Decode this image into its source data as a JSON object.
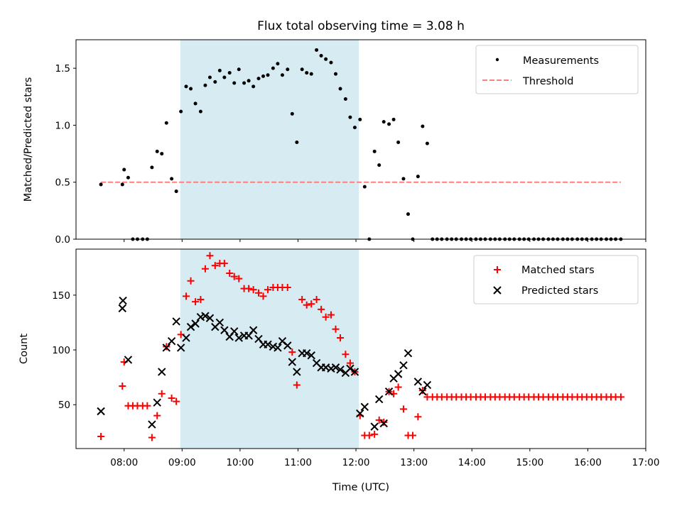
{
  "chart_data": [
    {
      "type": "scatter",
      "title": "Flux total observing time = 3.08 h",
      "xlabel": "",
      "ylabel": "Matched/Predicted stars",
      "xlim": [
        7.17,
        17.0
      ],
      "ylim": [
        0.0,
        1.75
      ],
      "yticks": [
        0.0,
        0.5,
        1.0,
        1.5
      ],
      "ytick_labels": [
        "0.0",
        "0.5",
        "1.0",
        "1.5"
      ],
      "highlight_span": {
        "from": 8.97,
        "to": 12.05,
        "color": "#add8e6"
      },
      "legend": {
        "position": "top-right",
        "entries": [
          "Measurements",
          "Threshold"
        ]
      },
      "series": [
        {
          "name": "Measurements",
          "marker": "dot",
          "color": "#000000",
          "x": [
            7.6,
            7.97,
            8.0,
            8.07,
            8.15,
            8.23,
            8.32,
            8.4,
            8.48,
            8.57,
            8.65,
            8.73,
            8.82,
            8.9,
            8.98,
            9.07,
            9.15,
            9.23,
            9.32,
            9.4,
            9.48,
            9.57,
            9.65,
            9.73,
            9.82,
            9.9,
            9.98,
            10.07,
            10.15,
            10.23,
            10.32,
            10.4,
            10.48,
            10.57,
            10.65,
            10.73,
            10.82,
            10.9,
            10.98,
            11.07,
            11.15,
            11.23,
            11.32,
            11.4,
            11.48,
            11.57,
            11.65,
            11.73,
            11.82,
            11.9,
            11.98,
            12.07,
            12.15,
            12.23,
            12.32,
            12.4,
            12.48,
            12.57,
            12.65,
            12.73,
            12.82,
            12.9,
            12.98,
            13.07,
            13.15,
            13.23,
            13.32,
            13.4,
            13.48,
            13.57,
            13.65,
            13.73,
            13.82,
            13.9,
            13.98,
            14.07,
            14.15,
            14.23,
            14.32,
            14.4,
            14.48,
            14.57,
            14.65,
            14.73,
            14.82,
            14.9,
            14.98,
            15.07,
            15.15,
            15.23,
            15.32,
            15.4,
            15.48,
            15.57,
            15.65,
            15.73,
            15.82,
            15.9,
            15.98,
            16.07,
            16.15,
            16.23,
            16.32,
            16.4,
            16.48,
            16.57
          ],
          "y": [
            0.48,
            0.48,
            0.61,
            0.54,
            0.0,
            0.0,
            0.0,
            0.0,
            0.63,
            0.77,
            0.75,
            1.02,
            0.53,
            0.42,
            1.12,
            1.34,
            1.32,
            1.19,
            1.12,
            1.35,
            1.42,
            1.38,
            1.48,
            1.42,
            1.46,
            1.37,
            1.49,
            1.37,
            1.39,
            1.34,
            1.41,
            1.43,
            1.44,
            1.5,
            1.54,
            1.44,
            1.49,
            1.1,
            0.85,
            1.49,
            1.46,
            1.45,
            1.66,
            1.61,
            1.58,
            1.55,
            1.45,
            1.32,
            1.23,
            1.07,
            0.98,
            1.05,
            0.46,
            0.0,
            0.77,
            0.65,
            1.03,
            1.01,
            1.05,
            0.85,
            0.53,
            0.22,
            0.0,
            0.55,
            0.99,
            0.84,
            0.0,
            0.0,
            0.0,
            0.0,
            0.0,
            0.0,
            0.0,
            0.0,
            0.0,
            0.0,
            0.0,
            0.0,
            0.0,
            0.0,
            0.0,
            0.0,
            0.0,
            0.0,
            0.0,
            0.0,
            0.0,
            0.0,
            0.0,
            0.0,
            0.0,
            0.0,
            0.0,
            0.0,
            0.0,
            0.0,
            0.0,
            0.0,
            0.0,
            0.0,
            0.0,
            0.0,
            0.0,
            0.0,
            0.0,
            0.0
          ]
        },
        {
          "name": "Threshold",
          "marker": "dashed-line",
          "color": "#ff7f7f",
          "x": [
            7.6,
            16.57
          ],
          "y": [
            0.5,
            0.5
          ]
        }
      ]
    },
    {
      "type": "scatter",
      "title": "",
      "xlabel": "Time (UTC)",
      "ylabel": "Count",
      "xlim": [
        7.17,
        17.0
      ],
      "ylim": [
        10,
        192
      ],
      "yticks": [
        50,
        100,
        150
      ],
      "ytick_labels": [
        "50",
        "100",
        "150"
      ],
      "xticks": [
        8,
        9,
        10,
        11,
        12,
        13,
        14,
        15,
        16,
        17
      ],
      "xtick_labels": [
        "08:00",
        "09:00",
        "10:00",
        "11:00",
        "12:00",
        "13:00",
        "14:00",
        "15:00",
        "16:00",
        "17:00"
      ],
      "highlight_span": {
        "from": 8.97,
        "to": 12.05,
        "color": "#add8e6"
      },
      "legend": {
        "position": "top-right",
        "entries": [
          "Matched stars",
          "Predicted stars"
        ]
      },
      "series": [
        {
          "name": "Matched stars",
          "marker": "plus",
          "color": "#ff0000",
          "x": [
            7.6,
            7.97,
            8.0,
            8.07,
            8.15,
            8.23,
            8.32,
            8.4,
            8.48,
            8.57,
            8.65,
            8.73,
            8.82,
            8.9,
            8.98,
            9.07,
            9.15,
            9.23,
            9.32,
            9.4,
            9.48,
            9.57,
            9.65,
            9.73,
            9.82,
            9.9,
            9.98,
            10.07,
            10.15,
            10.23,
            10.32,
            10.4,
            10.48,
            10.57,
            10.65,
            10.73,
            10.82,
            10.9,
            10.98,
            11.07,
            11.15,
            11.23,
            11.32,
            11.4,
            11.48,
            11.57,
            11.65,
            11.73,
            11.82,
            11.9,
            11.98,
            12.07,
            12.15,
            12.23,
            12.32,
            12.4,
            12.48,
            12.57,
            12.65,
            12.73,
            12.82,
            12.9,
            12.98,
            13.07,
            13.15,
            13.23,
            13.32,
            13.4,
            13.48,
            13.57,
            13.65,
            13.73,
            13.82,
            13.9,
            13.98,
            14.07,
            14.15,
            14.23,
            14.32,
            14.4,
            14.48,
            14.57,
            14.65,
            14.73,
            14.82,
            14.9,
            14.98,
            15.07,
            15.15,
            15.23,
            15.32,
            15.4,
            15.48,
            15.57,
            15.65,
            15.73,
            15.82,
            15.9,
            15.98,
            16.07,
            16.15,
            16.23,
            16.32,
            16.4,
            16.48,
            16.57
          ],
          "y": [
            21,
            67,
            89,
            49,
            49,
            49,
            49,
            49,
            20,
            40,
            60,
            103,
            56,
            53,
            114,
            149,
            163,
            144,
            146,
            174,
            186,
            177,
            179,
            179,
            170,
            167,
            165,
            156,
            156,
            155,
            152,
            149,
            155,
            157,
            157,
            157,
            157,
            98,
            68,
            146,
            141,
            142,
            146,
            137,
            130,
            132,
            119,
            111,
            96,
            88,
            80,
            40,
            22,
            22,
            23,
            36,
            34,
            62,
            60,
            66,
            46,
            22,
            22,
            39,
            63,
            57,
            57,
            57,
            57,
            57,
            57,
            57,
            57,
            57,
            57,
            57,
            57,
            57,
            57,
            57,
            57,
            57,
            57,
            57,
            57,
            57,
            57,
            57,
            57,
            57,
            57,
            57,
            57,
            57,
            57,
            57,
            57,
            57,
            57,
            57,
            57,
            57,
            57,
            57,
            57,
            57
          ]
        },
        {
          "name": "Predicted stars",
          "marker": "x",
          "color": "#000000",
          "x": [
            7.6,
            7.97,
            7.98,
            8.07,
            8.48,
            8.57,
            8.65,
            8.73,
            8.82,
            8.9,
            8.98,
            9.07,
            9.15,
            9.23,
            9.32,
            9.4,
            9.48,
            9.57,
            9.65,
            9.73,
            9.82,
            9.9,
            9.98,
            10.07,
            10.15,
            10.23,
            10.32,
            10.4,
            10.48,
            10.57,
            10.65,
            10.73,
            10.82,
            10.9,
            10.98,
            11.07,
            11.15,
            11.23,
            11.32,
            11.4,
            11.48,
            11.57,
            11.65,
            11.73,
            11.82,
            11.9,
            11.98,
            12.07,
            12.15,
            12.32,
            12.4,
            12.48,
            12.57,
            12.65,
            12.73,
            12.82,
            12.9,
            13.07,
            13.15,
            13.23
          ],
          "y": [
            44,
            138,
            145,
            91,
            32,
            52,
            80,
            102,
            108,
            126,
            102,
            111,
            121,
            124,
            130,
            131,
            129,
            121,
            125,
            118,
            112,
            117,
            111,
            113,
            113,
            118,
            110,
            105,
            105,
            103,
            102,
            108,
            104,
            89,
            80,
            97,
            97,
            95,
            88,
            84,
            84,
            83,
            84,
            82,
            79,
            83,
            80,
            42,
            48,
            30,
            55,
            33,
            62,
            74,
            78,
            86,
            97,
            71,
            62,
            68
          ]
        }
      ]
    }
  ]
}
